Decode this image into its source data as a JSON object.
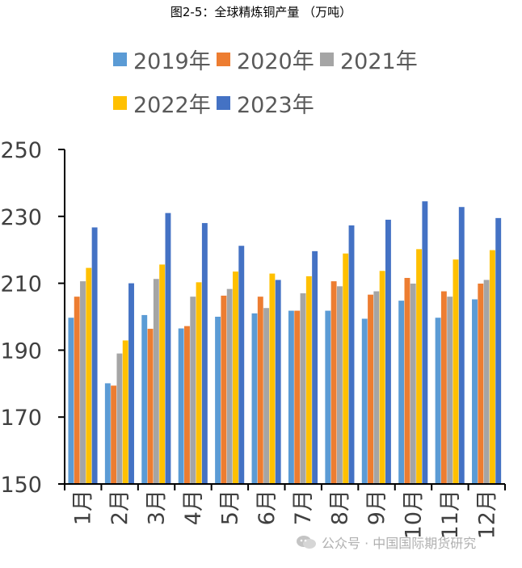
{
  "title": "图2-5：全球精炼铜产量 （万吨）",
  "watermark": "公众号 · 中国国际期货研究",
  "chart_data": {
    "type": "bar",
    "title": "图2-5：全球精炼铜产量 （万吨）",
    "categories": [
      "1月",
      "2月",
      "3月",
      "4月",
      "5月",
      "6月",
      "7月",
      "8月",
      "9月",
      "10月",
      "11月",
      "12月"
    ],
    "series": [
      {
        "name": "2019年",
        "color": "#5B9BD5",
        "values": [
          199.7,
          180.1,
          200.5,
          196.5,
          200.0,
          201.0,
          201.8,
          201.8,
          199.4,
          204.8,
          199.7,
          205.2
        ]
      },
      {
        "name": "2020年",
        "color": "#ED7D31",
        "values": [
          206.0,
          179.4,
          196.4,
          197.2,
          206.3,
          206.0,
          201.8,
          210.6,
          206.6,
          211.6,
          207.6,
          209.9
        ]
      },
      {
        "name": "2021年",
        "color": "#A5A5A5",
        "values": [
          210.6,
          189.0,
          211.3,
          206.0,
          208.3,
          202.6,
          207.0,
          209.1,
          207.6,
          209.9,
          206.0,
          211.0
        ]
      },
      {
        "name": "2022年",
        "color": "#FFC000",
        "values": [
          214.6,
          192.9,
          215.6,
          210.3,
          213.5,
          212.9,
          212.1,
          218.9,
          213.7,
          220.2,
          217.1,
          219.9
        ]
      },
      {
        "name": "2023年",
        "color": "#4472C4",
        "values": [
          226.7,
          210.0,
          231.0,
          228.0,
          221.2,
          211.0,
          219.6,
          227.3,
          229.0,
          234.5,
          232.8,
          229.5
        ]
      }
    ],
    "ylim": [
      150,
      250
    ],
    "yticks": [
      150,
      170,
      190,
      210,
      230,
      250
    ],
    "legend_position": "top",
    "grid": false
  }
}
